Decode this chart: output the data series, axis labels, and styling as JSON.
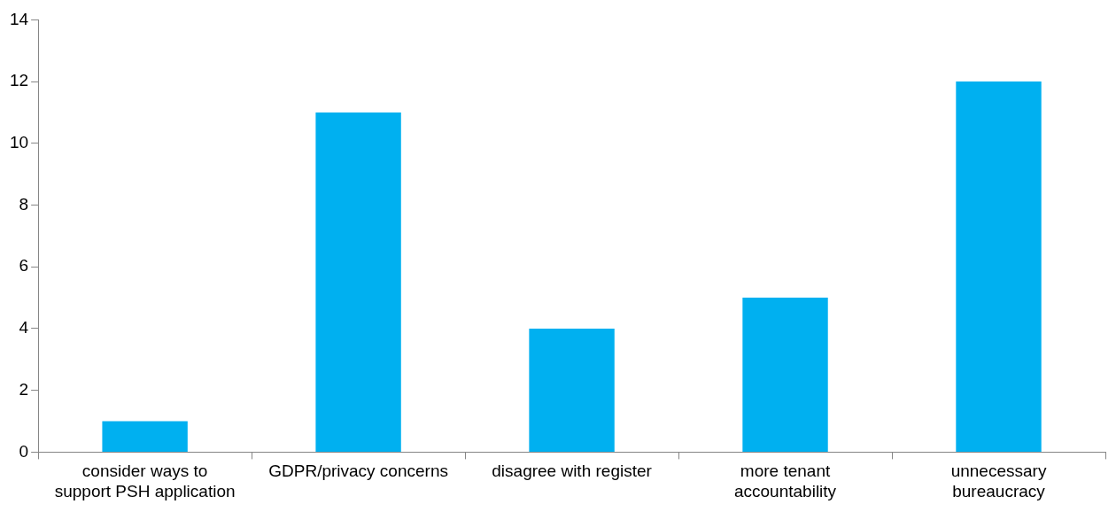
{
  "chart_data": {
    "type": "bar",
    "categories": [
      "consider ways to support PSH application",
      "GDPR/privacy concerns",
      "disagree with register",
      "more tenant accountability",
      "unnecessary bureaucracy"
    ],
    "values": [
      1,
      11,
      4,
      5,
      12
    ],
    "color": "#00b0f0",
    "ylim": [
      0,
      14
    ],
    "yticks": [
      0,
      2,
      4,
      6,
      8,
      10,
      12,
      14
    ],
    "grid": false,
    "legend": false
  }
}
